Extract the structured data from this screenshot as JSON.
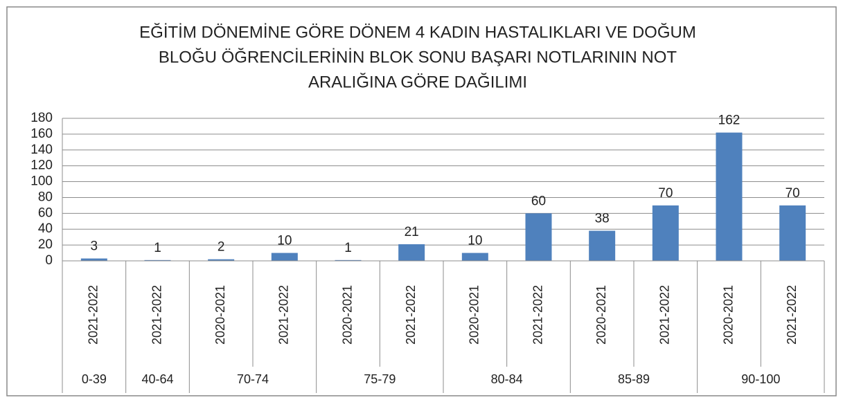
{
  "chart_data": {
    "type": "bar",
    "title": [
      "EĞİTİM DÖNEMİNE GÖRE DÖNEM 4 KADIN HASTALIKLARI VE DOĞUM",
      "BLOĞU ÖĞRENCİLERİNİN  BLOK SONU BAŞARI NOTLARININ NOT",
      "ARALIĞINA GÖRE DAĞILIMI"
    ],
    "groups": [
      {
        "label": "0-39",
        "categories": [
          "2021-2022"
        ],
        "values": [
          3
        ]
      },
      {
        "label": "40-64",
        "categories": [
          "2021-2022"
        ],
        "values": [
          1
        ]
      },
      {
        "label": "70-74",
        "categories": [
          "2020-2021",
          "2021-2022"
        ],
        "values": [
          2,
          10
        ]
      },
      {
        "label": "75-79",
        "categories": [
          "2020-2021",
          "2021-2022"
        ],
        "values": [
          1,
          21
        ]
      },
      {
        "label": "80-84",
        "categories": [
          "2020-2021",
          "2021-2022"
        ],
        "values": [
          10,
          60
        ]
      },
      {
        "label": "85-89",
        "categories": [
          "2020-2021",
          "2021-2022"
        ],
        "values": [
          38,
          70
        ]
      },
      {
        "label": "90-100",
        "categories": [
          "2020-2021",
          "2021-2022"
        ],
        "values": [
          162,
          70
        ]
      }
    ],
    "color": "#4f81bd",
    "ylim": [
      0,
      180
    ],
    "yticks": [
      0,
      20,
      40,
      60,
      80,
      100,
      120,
      140,
      160,
      180
    ],
    "grid": true
  }
}
